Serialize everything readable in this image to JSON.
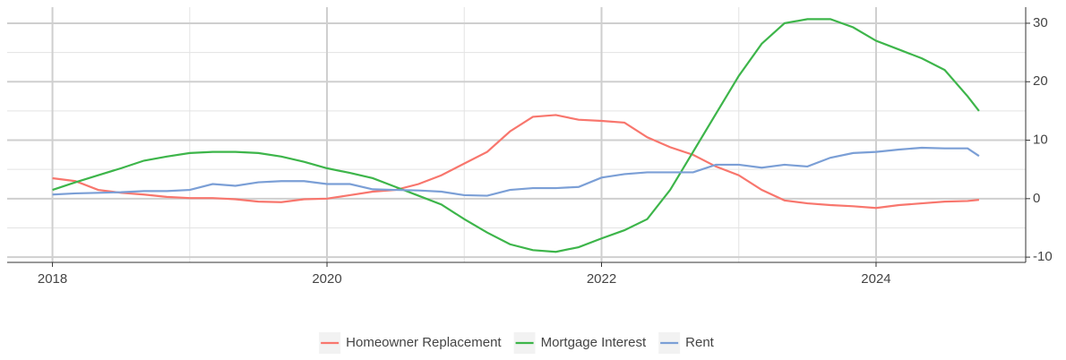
{
  "chart_data": {
    "type": "line",
    "x": [
      2018.0,
      2018.167,
      2018.333,
      2018.5,
      2018.667,
      2018.833,
      2019.0,
      2019.167,
      2019.333,
      2019.5,
      2019.667,
      2019.833,
      2020.0,
      2020.167,
      2020.333,
      2020.5,
      2020.667,
      2020.833,
      2021.0,
      2021.167,
      2021.333,
      2021.5,
      2021.667,
      2021.833,
      2022.0,
      2022.167,
      2022.333,
      2022.5,
      2022.667,
      2022.833,
      2023.0,
      2023.167,
      2023.333,
      2023.5,
      2023.667,
      2023.833,
      2024.0,
      2024.167,
      2024.333,
      2024.5,
      2024.667,
      2024.75
    ],
    "series": [
      {
        "name": "Homeowner Replacement",
        "color": "#F8766D",
        "values": [
          3.5,
          3,
          1.5,
          1,
          0.7,
          0.3,
          0.1,
          0.1,
          -0.1,
          -0.5,
          -0.6,
          -0.1,
          0,
          0.6,
          1.2,
          1.5,
          2.5,
          4,
          6,
          8,
          11.5,
          14,
          14.3,
          13.5,
          13.3,
          13,
          10.5,
          8.8,
          7.5,
          5.5,
          4,
          1.5,
          -0.3,
          -0.8,
          -1.1,
          -1.3,
          -1.6,
          -1.1,
          -0.8,
          -0.5,
          -0.4,
          -0.2
        ]
      },
      {
        "name": "Mortgage Interest",
        "color": "#3DB54A",
        "values": [
          1.5,
          2.8,
          4,
          5.2,
          6.5,
          7.2,
          7.8,
          8,
          8,
          7.8,
          7.2,
          6.3,
          5.2,
          4.4,
          3.5,
          2,
          0.5,
          -1,
          -3.5,
          -5.8,
          -7.8,
          -8.8,
          -9.1,
          -8.3,
          -6.8,
          -5.4,
          -3.5,
          1.5,
          8,
          14.5,
          21,
          26.5,
          30,
          30.7,
          30.7,
          29.3,
          27,
          25.5,
          24,
          22,
          17.5,
          15
        ]
      },
      {
        "name": "Rent",
        "color": "#7B9FD6",
        "values": [
          0.7,
          0.9,
          1,
          1.1,
          1.3,
          1.3,
          1.5,
          2.5,
          2.2,
          2.8,
          3,
          3,
          2.5,
          2.5,
          1.6,
          1.5,
          1.4,
          1.2,
          0.6,
          0.5,
          1.5,
          1.8,
          1.8,
          2,
          3.6,
          4.2,
          4.5,
          4.5,
          4.5,
          5.8,
          5.8,
          5.3,
          5.8,
          5.5,
          7,
          7.8,
          8,
          8.4,
          8.7,
          8.6,
          8.6,
          7.3
        ]
      }
    ],
    "xlim": [
      2017.67,
      2025.09
    ],
    "xticks": [
      2018,
      2020,
      2022,
      2024
    ],
    "ylim": [
      -10.9,
      32.75
    ],
    "yticks": [
      -10,
      0,
      10,
      20,
      30
    ],
    "grid": true,
    "legend": "bottom"
  }
}
